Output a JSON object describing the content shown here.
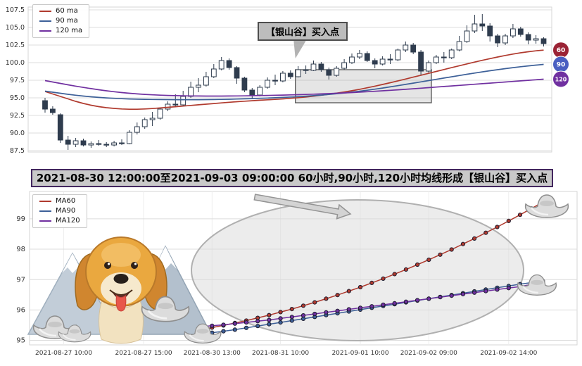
{
  "banner": {
    "text": "2021-08-30 12:00:00至2021-09-03 09:00:00 60小时,90小时,120小时均线形成【银山谷】买入点"
  },
  "decorations": {
    "illustrations": [
      "golden-retriever-dog",
      "snow-mountains",
      "silver-ingot"
    ],
    "highlight_ellipse": true,
    "pointer_arrow_from_title": true,
    "accent_border_color": "#43275f"
  },
  "chart_data": [
    {
      "id": "hourly-candlestick-chart",
      "type": "candlestick",
      "title": "",
      "ylim": [
        87.5,
        107.5
      ],
      "yticks": [
        87.5,
        90.0,
        92.5,
        95.0,
        97.5,
        100.0,
        102.5,
        105.0,
        107.5
      ],
      "grid": true,
      "legend": {
        "position": "upper-left",
        "items": [
          {
            "label": "60 ma",
            "color": "#b03a2e"
          },
          {
            "label": "90 ma",
            "color": "#3d6098"
          },
          {
            "label": "120 ma",
            "color": "#7030a0"
          }
        ]
      },
      "annotation": {
        "text": "【银山谷】买入点"
      },
      "highlight_box": {
        "x0": 33,
        "x1": 50,
        "y0": 94.3,
        "y1": 99.0
      },
      "end_badges": [
        {
          "label": "60",
          "bg": "#9b2335"
        },
        {
          "label": "90",
          "bg": "#4a5fc1"
        },
        {
          "label": "120",
          "bg": "#7030a0"
        }
      ],
      "candles": {
        "up_color": "#ffffff",
        "down_color": "#2f3c4e",
        "edge_color": "#2f3c4e",
        "ohlc": [
          [
            94.6,
            95.0,
            92.9,
            93.4
          ],
          [
            93.4,
            93.8,
            92.6,
            92.9
          ],
          [
            92.6,
            92.8,
            88.6,
            89.0
          ],
          [
            89.0,
            89.6,
            87.6,
            88.4
          ],
          [
            88.4,
            89.3,
            88.0,
            88.9
          ],
          [
            88.9,
            89.2,
            88.1,
            88.3
          ],
          [
            88.3,
            88.8,
            87.9,
            88.5
          ],
          [
            88.5,
            89.0,
            88.2,
            88.4
          ],
          [
            88.4,
            88.7,
            88.0,
            88.3
          ],
          [
            88.3,
            88.9,
            88.1,
            88.6
          ],
          [
            88.6,
            89.1,
            88.3,
            88.5
          ],
          [
            88.5,
            90.4,
            88.4,
            90.1
          ],
          [
            90.1,
            91.5,
            89.8,
            90.9
          ],
          [
            90.9,
            92.2,
            90.6,
            91.9
          ],
          [
            91.9,
            93.0,
            91.0,
            92.1
          ],
          [
            92.1,
            93.6,
            91.9,
            93.4
          ],
          [
            93.4,
            94.5,
            93.1,
            94.1
          ],
          [
            94.1,
            95.5,
            93.8,
            94.0
          ],
          [
            94.0,
            96.0,
            93.9,
            95.2
          ],
          [
            95.2,
            97.3,
            95.0,
            96.5
          ],
          [
            96.5,
            97.8,
            95.8,
            96.8
          ],
          [
            96.8,
            98.7,
            96.6,
            98.0
          ],
          [
            98.0,
            99.8,
            97.8,
            99.1
          ],
          [
            99.1,
            100.8,
            98.9,
            100.3
          ],
          [
            100.3,
            100.6,
            99.0,
            99.3
          ],
          [
            99.3,
            99.5,
            97.0,
            97.8
          ],
          [
            97.8,
            98.0,
            95.8,
            96.1
          ],
          [
            96.1,
            96.4,
            94.9,
            95.4
          ],
          [
            95.4,
            96.8,
            95.2,
            96.5
          ],
          [
            96.5,
            97.9,
            96.3,
            97.5
          ],
          [
            97.5,
            98.3,
            96.8,
            97.4
          ],
          [
            97.4,
            98.8,
            97.2,
            98.5
          ],
          [
            98.5,
            98.9,
            97.7,
            98.0
          ],
          [
            98.0,
            99.5,
            97.9,
            99.0
          ],
          [
            99.0,
            99.6,
            98.4,
            98.9
          ],
          [
            98.9,
            100.3,
            98.8,
            99.8
          ],
          [
            99.8,
            100.1,
            98.7,
            99.0
          ],
          [
            99.0,
            99.3,
            97.6,
            98.2
          ],
          [
            98.2,
            99.5,
            98.0,
            99.2
          ],
          [
            99.2,
            100.5,
            99.0,
            100.0
          ],
          [
            100.0,
            101.3,
            99.8,
            100.8
          ],
          [
            100.8,
            101.8,
            100.5,
            101.3
          ],
          [
            101.3,
            101.6,
            100.1,
            100.3
          ],
          [
            100.3,
            100.6,
            99.2,
            99.8
          ],
          [
            99.8,
            100.9,
            99.6,
            100.5
          ],
          [
            100.5,
            101.2,
            99.8,
            100.4
          ],
          [
            100.4,
            102.0,
            100.2,
            101.8
          ],
          [
            101.8,
            103.0,
            101.5,
            102.5
          ],
          [
            102.5,
            102.8,
            101.2,
            101.5
          ],
          [
            101.5,
            101.8,
            98.3,
            98.8
          ],
          [
            98.8,
            100.3,
            98.6,
            100.0
          ],
          [
            100.0,
            101.1,
            99.8,
            100.8
          ],
          [
            100.8,
            101.5,
            100.0,
            100.7
          ],
          [
            100.7,
            102.0,
            100.5,
            101.8
          ],
          [
            101.8,
            103.8,
            101.6,
            103.0
          ],
          [
            103.0,
            105.3,
            102.8,
            104.5
          ],
          [
            104.5,
            106.8,
            104.2,
            105.5
          ],
          [
            105.5,
            106.9,
            104.5,
            105.2
          ],
          [
            105.2,
            105.6,
            103.0,
            103.8
          ],
          [
            103.8,
            104.1,
            102.2,
            102.8
          ],
          [
            102.8,
            104.1,
            102.5,
            103.8
          ],
          [
            103.8,
            105.5,
            103.5,
            104.8
          ],
          [
            104.8,
            105.1,
            103.7,
            104.0
          ],
          [
            104.0,
            104.3,
            102.6,
            103.2
          ],
          [
            103.2,
            103.9,
            102.7,
            103.4
          ],
          [
            103.4,
            103.6,
            102.3,
            102.7
          ]
        ]
      },
      "series": [
        {
          "name": "60 ma",
          "color": "#b03a2e",
          "values": [
            95.9,
            95.55,
            95.2,
            94.85,
            94.5,
            94.2,
            93.95,
            93.75,
            93.6,
            93.5,
            93.42,
            93.38,
            93.38,
            93.42,
            93.48,
            93.56,
            93.65,
            93.74,
            93.83,
            93.92,
            94.01,
            94.1,
            94.19,
            94.28,
            94.37,
            94.45,
            94.52,
            94.59,
            94.66,
            94.72,
            94.78,
            94.85,
            94.93,
            95.02,
            95.12,
            95.24,
            95.37,
            95.51,
            95.66,
            95.83,
            96.01,
            96.21,
            96.43,
            96.66,
            96.9,
            97.15,
            97.41,
            97.67,
            97.94,
            98.21,
            98.48,
            98.75,
            99.02,
            99.29,
            99.56,
            99.82,
            100.08,
            100.33,
            100.57,
            100.8,
            101.02,
            101.22,
            101.4,
            101.55,
            101.68,
            101.78
          ]
        },
        {
          "name": "90 ma",
          "color": "#3d6098",
          "values": [
            95.95,
            95.8,
            95.65,
            95.5,
            95.37,
            95.25,
            95.15,
            95.06,
            94.99,
            94.93,
            94.88,
            94.84,
            94.81,
            94.79,
            94.77,
            94.76,
            94.75,
            94.74,
            94.74,
            94.74,
            94.74,
            94.75,
            94.76,
            94.78,
            94.8,
            94.83,
            94.86,
            94.89,
            94.93,
            94.97,
            95.01,
            95.06,
            95.11,
            95.17,
            95.24,
            95.31,
            95.39,
            95.48,
            95.58,
            95.69,
            95.81,
            95.94,
            96.08,
            96.23,
            96.39,
            96.56,
            96.73,
            96.91,
            97.09,
            97.27,
            97.45,
            97.63,
            97.81,
            97.99,
            98.17,
            98.35,
            98.52,
            98.69,
            98.85,
            99.0,
            99.15,
            99.29,
            99.42,
            99.54,
            99.65,
            99.75
          ]
        },
        {
          "name": "120 ma",
          "color": "#7030a0",
          "values": [
            97.45,
            97.25,
            97.05,
            96.85,
            96.66,
            96.48,
            96.31,
            96.15,
            96.0,
            95.87,
            95.75,
            95.65,
            95.56,
            95.49,
            95.43,
            95.38,
            95.34,
            95.31,
            95.29,
            95.27,
            95.26,
            95.25,
            95.25,
            95.25,
            95.26,
            95.27,
            95.28,
            95.3,
            95.32,
            95.34,
            95.36,
            95.39,
            95.42,
            95.45,
            95.48,
            95.52,
            95.56,
            95.6,
            95.65,
            95.7,
            95.75,
            95.81,
            95.87,
            95.93,
            96.0,
            96.07,
            96.14,
            96.21,
            96.29,
            96.37,
            96.45,
            96.53,
            96.61,
            96.69,
            96.77,
            96.85,
            96.93,
            97.01,
            97.09,
            97.17,
            97.25,
            97.33,
            97.41,
            97.49,
            97.57,
            97.65
          ]
        }
      ]
    },
    {
      "id": "ma-lines-chart",
      "type": "line",
      "ylim": [
        94.85,
        99.9
      ],
      "yticks": [
        95,
        96,
        97,
        98,
        99
      ],
      "grid": true,
      "x_axis_units": 48,
      "x_tick_positions": [
        3,
        10,
        16,
        22,
        29,
        35,
        42
      ],
      "x_tick_labels": [
        "2021-08-27 10:00",
        "2021-08-27 15:00",
        "2021-08-30 13:00",
        "2021-08-31 10:00",
        "2021-09-01 10:00",
        "2021-09-02 09:00",
        "2021-09-02 14:00"
      ],
      "series_x_start": 15,
      "legend": {
        "position": "upper-left",
        "items": [
          {
            "label": "MA60",
            "color": "#b03a2e"
          },
          {
            "label": "MA90",
            "color": "#3d6098"
          },
          {
            "label": "MA120",
            "color": "#7030a0"
          }
        ]
      },
      "series": [
        {
          "name": "MA60",
          "color": "#b03a2e",
          "values": [
            95.35,
            95.42,
            95.49,
            95.57,
            95.65,
            95.74,
            95.83,
            95.93,
            96.03,
            96.14,
            96.25,
            96.37,
            96.49,
            96.62,
            96.75,
            96.89,
            97.03,
            97.18,
            97.33,
            97.49,
            97.65,
            97.82,
            97.99,
            98.17,
            98.35,
            98.54,
            98.73,
            98.93,
            99.13,
            99.34,
            99.55
          ]
        },
        {
          "name": "MA90",
          "color": "#3d6098",
          "values": [
            95.2,
            95.25,
            95.3,
            95.35,
            95.41,
            95.47,
            95.53,
            95.59,
            95.65,
            95.71,
            95.77,
            95.83,
            95.89,
            95.95,
            96.01,
            96.07,
            96.13,
            96.19,
            96.25,
            96.31,
            96.37,
            96.43,
            96.49,
            96.55,
            96.61,
            96.67,
            96.73,
            96.79,
            96.85,
            96.9,
            96.95
          ]
        },
        {
          "name": "MA120",
          "color": "#7030a0",
          "values": [
            95.45,
            95.48,
            95.51,
            95.55,
            95.59,
            95.63,
            95.67,
            95.72,
            95.77,
            95.82,
            95.87,
            95.92,
            95.97,
            96.02,
            96.07,
            96.12,
            96.17,
            96.22,
            96.27,
            96.32,
            96.37,
            96.42,
            96.47,
            96.52,
            96.57,
            96.62,
            96.67,
            96.72,
            96.77,
            96.84,
            96.9
          ]
        }
      ]
    }
  ]
}
